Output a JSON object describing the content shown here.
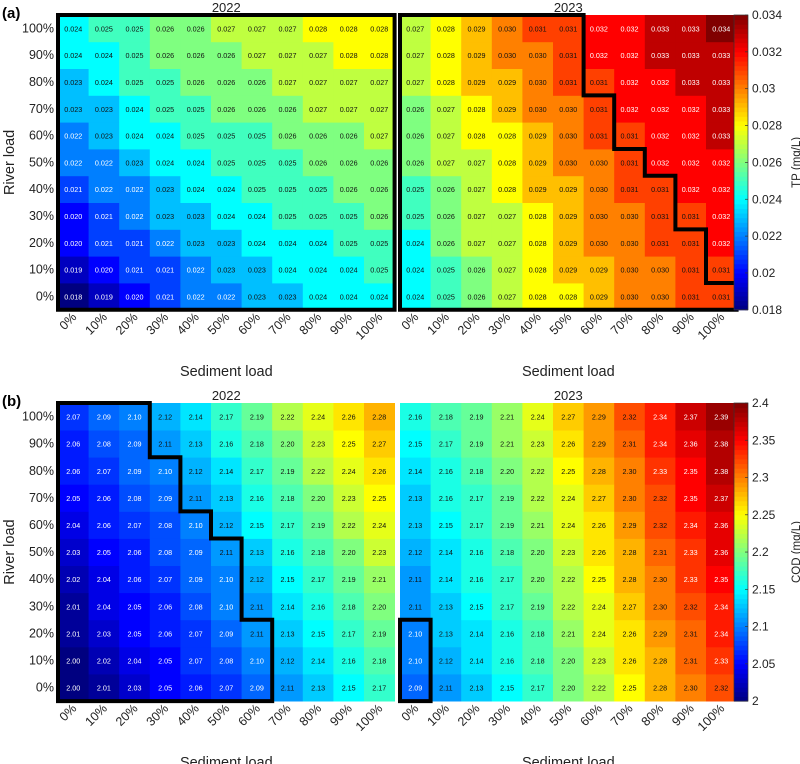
{
  "chart_data": [
    {
      "type": "heatmap",
      "panel_label": "(a)",
      "xlabel": "Sediment load",
      "ylabel": "River load",
      "colorbar_label": "TP (mg/L)",
      "colorbar_range": [
        0.018,
        0.034
      ],
      "colorbar_ticks": [
        "0.018",
        "0.02",
        "0.022",
        "0.024",
        "0.026",
        "0.028",
        "0.03",
        "0.032",
        "0.034"
      ],
      "x_categories": [
        "0%",
        "10%",
        "20%",
        "30%",
        "40%",
        "50%",
        "60%",
        "70%",
        "80%",
        "90%",
        "100%"
      ],
      "y_categories": [
        "0%",
        "10%",
        "20%",
        "30%",
        "40%",
        "50%",
        "60%",
        "70%",
        "80%",
        "90%",
        "100%"
      ],
      "heatmaps": [
        {
          "title": "2022",
          "values": [
            [
              "0.018",
              "0.019",
              "0.020",
              "0.021",
              "0.022",
              "0.022",
              "0.023",
              "0.023",
              "0.024",
              "0.024",
              "0.024"
            ],
            [
              "0.019",
              "0.020",
              "0.021",
              "0.021",
              "0.022",
              "0.023",
              "0.023",
              "0.024",
              "0.024",
              "0.024",
              "0.025"
            ],
            [
              "0.020",
              "0.021",
              "0.021",
              "0.022",
              "0.023",
              "0.023",
              "0.024",
              "0.024",
              "0.024",
              "0.025",
              "0.025"
            ],
            [
              "0.020",
              "0.021",
              "0.022",
              "0.023",
              "0.023",
              "0.024",
              "0.024",
              "0.025",
              "0.025",
              "0.025",
              "0.026"
            ],
            [
              "0.021",
              "0.022",
              "0.022",
              "0.023",
              "0.024",
              "0.024",
              "0.025",
              "0.025",
              "0.025",
              "0.026",
              "0.026"
            ],
            [
              "0.022",
              "0.022",
              "0.023",
              "0.024",
              "0.024",
              "0.025",
              "0.025",
              "0.025",
              "0.026",
              "0.026",
              "0.026"
            ],
            [
              "0.022",
              "0.023",
              "0.024",
              "0.024",
              "0.025",
              "0.025",
              "0.025",
              "0.026",
              "0.026",
              "0.026",
              "0.027"
            ],
            [
              "0.023",
              "0.023",
              "0.024",
              "0.025",
              "0.025",
              "0.026",
              "0.026",
              "0.026",
              "0.027",
              "0.027",
              "0.027"
            ],
            [
              "0.023",
              "0.024",
              "0.025",
              "0.025",
              "0.026",
              "0.026",
              "0.026",
              "0.027",
              "0.027",
              "0.027",
              "0.027"
            ],
            [
              "0.024",
              "0.024",
              "0.025",
              "0.026",
              "0.026",
              "0.026",
              "0.027",
              "0.027",
              "0.027",
              "0.028",
              "0.028"
            ],
            [
              "0.024",
              "0.025",
              "0.025",
              "0.026",
              "0.026",
              "0.027",
              "0.027",
              "0.027",
              "0.028",
              "0.028",
              "0.028"
            ]
          ],
          "highlight_region_columns_per_row": [
            11,
            11,
            11,
            11,
            11,
            11,
            11,
            11,
            11,
            11,
            11
          ]
        },
        {
          "title": "2023",
          "values": [
            [
              "0.024",
              "0.025",
              "0.026",
              "0.027",
              "0.028",
              "0.028",
              "0.029",
              "0.030",
              "0.030",
              "0.031",
              "0.031"
            ],
            [
              "0.024",
              "0.025",
              "0.026",
              "0.027",
              "0.028",
              "0.029",
              "0.029",
              "0.030",
              "0.030",
              "0.031",
              "0.031"
            ],
            [
              "0.024",
              "0.026",
              "0.027",
              "0.027",
              "0.028",
              "0.029",
              "0.030",
              "0.030",
              "0.031",
              "0.031",
              "0.032"
            ],
            [
              "0.025",
              "0.026",
              "0.027",
              "0.027",
              "0.028",
              "0.029",
              "0.030",
              "0.030",
              "0.031",
              "0.031",
              "0.032"
            ],
            [
              "0.025",
              "0.026",
              "0.027",
              "0.028",
              "0.029",
              "0.029",
              "0.030",
              "0.031",
              "0.031",
              "0.032",
              "0.032"
            ],
            [
              "0.026",
              "0.027",
              "0.027",
              "0.028",
              "0.029",
              "0.030",
              "0.030",
              "0.031",
              "0.032",
              "0.032",
              "0.032"
            ],
            [
              "0.026",
              "0.027",
              "0.028",
              "0.028",
              "0.029",
              "0.030",
              "0.031",
              "0.031",
              "0.032",
              "0.032",
              "0.033"
            ],
            [
              "0.026",
              "0.027",
              "0.028",
              "0.029",
              "0.030",
              "0.030",
              "0.031",
              "0.032",
              "0.032",
              "0.032",
              "0.033"
            ],
            [
              "0.027",
              "0.028",
              "0.029",
              "0.029",
              "0.030",
              "0.031",
              "0.031",
              "0.032",
              "0.032",
              "0.033",
              "0.033"
            ],
            [
              "0.027",
              "0.028",
              "0.029",
              "0.030",
              "0.030",
              "0.031",
              "0.032",
              "0.032",
              "0.033",
              "0.033",
              "0.033"
            ],
            [
              "0.027",
              "0.028",
              "0.029",
              "0.030",
              "0.031",
              "0.031",
              "0.032",
              "0.032",
              "0.033",
              "0.033",
              "0.034"
            ]
          ],
          "highlight_region_columns_per_row": [
            11,
            10,
            10,
            9,
            9,
            8,
            7,
            7,
            6,
            6,
            6
          ]
        }
      ]
    },
    {
      "type": "heatmap",
      "panel_label": "(b)",
      "xlabel": "Sediment load",
      "ylabel": "River load",
      "colorbar_label": "COD (mg/L)",
      "colorbar_range": [
        2.0,
        2.4
      ],
      "colorbar_ticks": [
        "2",
        "2.05",
        "2.1",
        "2.15",
        "2.2",
        "2.25",
        "2.3",
        "2.35",
        "2.4"
      ],
      "x_categories": [
        "0%",
        "10%",
        "20%",
        "30%",
        "40%",
        "50%",
        "60%",
        "70%",
        "80%",
        "90%",
        "100%"
      ],
      "y_categories": [
        "0%",
        "10%",
        "20%",
        "30%",
        "40%",
        "50%",
        "60%",
        "70%",
        "80%",
        "90%",
        "100%"
      ],
      "heatmaps": [
        {
          "title": "2022",
          "values": [
            [
              "2.00",
              "2.01",
              "2.03",
              "2.05",
              "2.06",
              "2.07",
              "2.09",
              "2.11",
              "2.13",
              "2.15",
              "2.17"
            ],
            [
              "2.00",
              "2.02",
              "2.04",
              "2.05",
              "2.07",
              "2.08",
              "2.10",
              "2.12",
              "2.14",
              "2.16",
              "2.18"
            ],
            [
              "2.01",
              "2.03",
              "2.05",
              "2.06",
              "2.07",
              "2.09",
              "2.11",
              "2.13",
              "2.15",
              "2.17",
              "2.19"
            ],
            [
              "2.01",
              "2.04",
              "2.05",
              "2.06",
              "2.08",
              "2.10",
              "2.11",
              "2.14",
              "2.16",
              "2.18",
              "2.20"
            ],
            [
              "2.02",
              "2.04",
              "2.06",
              "2.07",
              "2.09",
              "2.10",
              "2.12",
              "2.15",
              "2.17",
              "2.19",
              "2.21"
            ],
            [
              "2.03",
              "2.05",
              "2.06",
              "2.08",
              "2.09",
              "2.11",
              "2.13",
              "2.16",
              "2.18",
              "2.20",
              "2.23"
            ],
            [
              "2.04",
              "2.06",
              "2.07",
              "2.08",
              "2.10",
              "2.12",
              "2.15",
              "2.17",
              "2.19",
              "2.22",
              "2.24"
            ],
            [
              "2.05",
              "2.06",
              "2.08",
              "2.09",
              "2.11",
              "2.13",
              "2.16",
              "2.18",
              "2.20",
              "2.23",
              "2.25"
            ],
            [
              "2.06",
              "2.07",
              "2.09",
              "2.10",
              "2.12",
              "2.14",
              "2.17",
              "2.19",
              "2.22",
              "2.24",
              "2.26"
            ],
            [
              "2.06",
              "2.08",
              "2.09",
              "2.11",
              "2.13",
              "2.16",
              "2.18",
              "2.20",
              "2.23",
              "2.25",
              "2.27"
            ],
            [
              "2.07",
              "2.09",
              "2.10",
              "2.12",
              "2.14",
              "2.17",
              "2.19",
              "2.22",
              "2.24",
              "2.26",
              "2.28"
            ]
          ],
          "highlight_region_columns_per_row": [
            7,
            7,
            7,
            6,
            6,
            6,
            5,
            4,
            4,
            3,
            3
          ]
        },
        {
          "title": "2023",
          "values": [
            [
              "2.09",
              "2.11",
              "2.13",
              "2.15",
              "2.17",
              "2.20",
              "2.22",
              "2.25",
              "2.28",
              "2.30",
              "2.32"
            ],
            [
              "2.10",
              "2.12",
              "2.14",
              "2.16",
              "2.18",
              "2.20",
              "2.23",
              "2.26",
              "2.28",
              "2.31",
              "2.33"
            ],
            [
              "2.10",
              "2.13",
              "2.14",
              "2.16",
              "2.18",
              "2.21",
              "2.24",
              "2.26",
              "2.29",
              "2.31",
              "2.34"
            ],
            [
              "2.11",
              "2.13",
              "2.15",
              "2.17",
              "2.19",
              "2.22",
              "2.24",
              "2.27",
              "2.30",
              "2.32",
              "2.34"
            ],
            [
              "2.11",
              "2.14",
              "2.16",
              "2.17",
              "2.20",
              "2.22",
              "2.25",
              "2.28",
              "2.30",
              "2.33",
              "2.35"
            ],
            [
              "2.12",
              "2.14",
              "2.16",
              "2.18",
              "2.20",
              "2.23",
              "2.26",
              "2.28",
              "2.31",
              "2.33",
              "2.36"
            ],
            [
              "2.13",
              "2.15",
              "2.17",
              "2.19",
              "2.21",
              "2.24",
              "2.26",
              "2.29",
              "2.32",
              "2.34",
              "2.36"
            ],
            [
              "2.13",
              "2.16",
              "2.17",
              "2.19",
              "2.22",
              "2.24",
              "2.27",
              "2.30",
              "2.32",
              "2.35",
              "2.37"
            ],
            [
              "2.14",
              "2.16",
              "2.18",
              "2.20",
              "2.22",
              "2.25",
              "2.28",
              "2.30",
              "2.33",
              "2.35",
              "2.38"
            ],
            [
              "2.15",
              "2.17",
              "2.19",
              "2.21",
              "2.23",
              "2.26",
              "2.29",
              "2.31",
              "2.34",
              "2.36",
              "2.38"
            ],
            [
              "2.16",
              "2.18",
              "2.19",
              "2.21",
              "2.24",
              "2.27",
              "2.29",
              "2.32",
              "2.34",
              "2.37",
              "2.39"
            ]
          ],
          "highlight_region_columns_per_row": [
            1,
            1,
            1,
            0,
            0,
            0,
            0,
            0,
            0,
            0,
            0
          ]
        }
      ]
    }
  ]
}
